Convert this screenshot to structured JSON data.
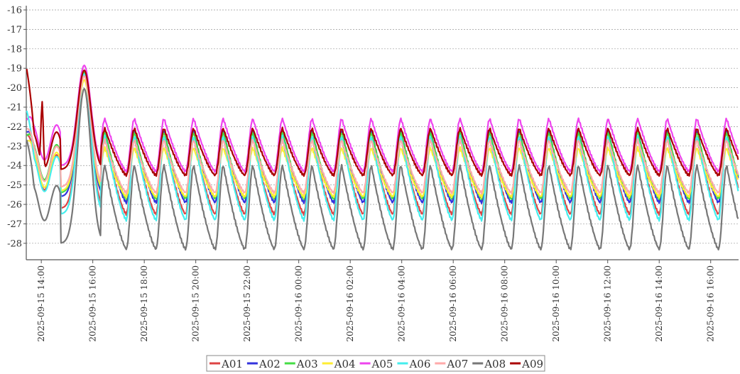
{
  "chart_data": {
    "type": "line",
    "title": "",
    "xlabel": "",
    "ylabel": "",
    "ylim": [
      -28.7,
      -16
    ],
    "xlim": [
      "2025-09-15 13:25",
      "2025-09-16 17:05"
    ],
    "yticks": [
      "-16",
      "-17",
      "-18",
      "-19",
      "-20",
      "-21",
      "-22",
      "-23",
      "-24",
      "-25",
      "-26",
      "-27",
      "-28"
    ],
    "xticks": [
      "2025-09-15 14:00",
      "2025-09-15 16:00",
      "2025-09-15 18:00",
      "2025-09-15 20:00",
      "2025-09-15 22:00",
      "2025-09-16 00:00",
      "2025-09-16 02:00",
      "2025-09-16 04:00",
      "2025-09-16 06:00",
      "2025-09-16 08:00",
      "2025-09-16 10:00",
      "2025-09-16 12:00",
      "2025-09-16 14:00",
      "2025-09-16 16:00"
    ],
    "grid": "horizontal dashed",
    "legend_position": "bottom-center",
    "cycle_period_minutes": 69,
    "series": [
      {
        "name": "A01",
        "color": "#dd4444",
        "peak": -22.6,
        "trough": -26.5,
        "start": -22.4
      },
      {
        "name": "A02",
        "color": "#3333dd",
        "peak": -22.2,
        "trough": -25.9,
        "start": -22.3
      },
      {
        "name": "A03",
        "color": "#44dd44",
        "peak": -22.3,
        "trough": -25.7,
        "start": -22.5
      },
      {
        "name": "A04",
        "color": "#ffee33",
        "peak": -23.1,
        "trough": -25.6,
        "start": -22.8
      },
      {
        "name": "A05",
        "color": "#ee44ee",
        "peak": -21.6,
        "trough": -24.3,
        "start": -21.7
      },
      {
        "name": "A06",
        "color": "#44eeee",
        "peak": -22.5,
        "trough": -26.8,
        "start": -21.1
      },
      {
        "name": "A07",
        "color": "#ffaaaa",
        "peak": -22.7,
        "trough": -25.4,
        "start": -22.1
      },
      {
        "name": "A08",
        "color": "#777777",
        "peak": -24.0,
        "trough": -28.3,
        "start": -22.6
      },
      {
        "name": "A09",
        "color": "#aa0000",
        "peak": -22.1,
        "trough": -24.5,
        "start": -18.9
      }
    ]
  }
}
